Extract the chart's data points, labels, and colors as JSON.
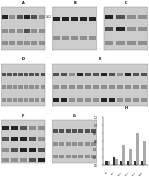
{
  "bg_color": "#f0f0f0",
  "panel_bg": "#d8d8d8",
  "band_dark": "#1a1a1a",
  "band_mid": "#555555",
  "band_light": "#999999",
  "title_color": "#000000",
  "panels": [
    "A",
    "B",
    "C",
    "D",
    "E",
    "F",
    "G",
    "H"
  ]
}
